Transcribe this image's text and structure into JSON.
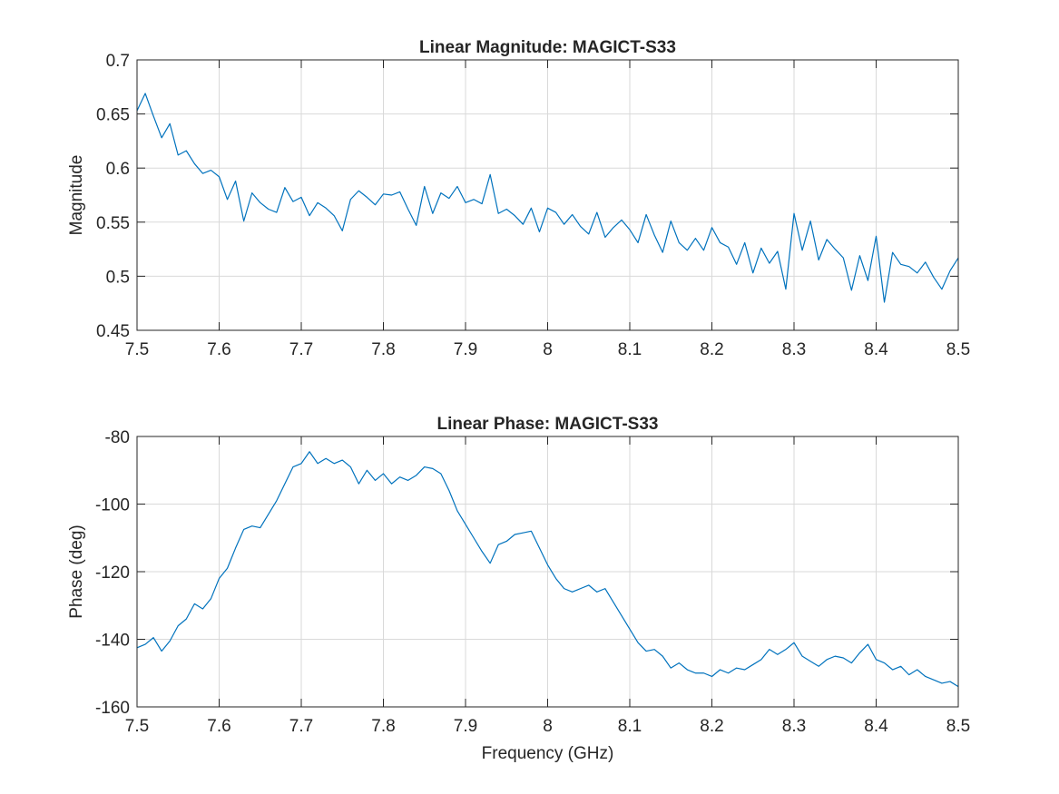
{
  "colors": {
    "series": "#0072BD",
    "axis": "#262626",
    "grid": "#d9d9d9"
  },
  "chart_data": [
    {
      "type": "line",
      "title": "Linear Magnitude: MAGICT-S33",
      "xlabel": "",
      "ylabel": "Magnitude",
      "xlim": [
        7.5,
        8.5
      ],
      "ylim": [
        0.45,
        0.7
      ],
      "xticks": [
        7.5,
        7.6,
        7.7,
        7.8,
        7.9,
        8,
        8.1,
        8.2,
        8.3,
        8.4,
        8.5
      ],
      "xtick_labels": [
        "7.5",
        "7.6",
        "7.7",
        "7.8",
        "7.9",
        "8",
        "8.1",
        "8.2",
        "8.3",
        "8.4",
        "8.5"
      ],
      "yticks": [
        0.45,
        0.5,
        0.55,
        0.6,
        0.65,
        0.7
      ],
      "ytick_labels": [
        "0.45",
        "0.5",
        "0.55",
        "0.6",
        "0.65",
        "0.7"
      ],
      "grid": true,
      "series": [
        {
          "x": [
            7.5,
            7.51,
            7.52,
            7.53,
            7.54,
            7.55,
            7.56,
            7.57,
            7.58,
            7.59,
            7.6,
            7.61,
            7.62,
            7.63,
            7.64,
            7.65,
            7.66,
            7.67,
            7.68,
            7.69,
            7.7,
            7.71,
            7.72,
            7.73,
            7.74,
            7.75,
            7.76,
            7.77,
            7.78,
            7.79,
            7.8,
            7.81,
            7.82,
            7.83,
            7.84,
            7.85,
            7.86,
            7.87,
            7.88,
            7.89,
            7.9,
            7.91,
            7.92,
            7.93,
            7.94,
            7.95,
            7.96,
            7.97,
            7.98,
            7.99,
            8.0,
            8.01,
            8.02,
            8.03,
            8.04,
            8.05,
            8.06,
            8.07,
            8.08,
            8.09,
            8.1,
            8.11,
            8.12,
            8.13,
            8.14,
            8.15,
            8.16,
            8.17,
            8.18,
            8.19,
            8.2,
            8.21,
            8.22,
            8.23,
            8.24,
            8.25,
            8.26,
            8.27,
            8.28,
            8.29,
            8.3,
            8.31,
            8.32,
            8.33,
            8.34,
            8.35,
            8.36,
            8.37,
            8.38,
            8.39,
            8.4,
            8.41,
            8.42,
            8.43,
            8.44,
            8.45,
            8.46,
            8.47,
            8.48,
            8.49,
            8.5
          ],
          "values": [
            0.653,
            0.669,
            0.648,
            0.628,
            0.641,
            0.612,
            0.616,
            0.604,
            0.595,
            0.598,
            0.592,
            0.571,
            0.588,
            0.551,
            0.577,
            0.568,
            0.562,
            0.559,
            0.582,
            0.569,
            0.573,
            0.556,
            0.568,
            0.563,
            0.556,
            0.542,
            0.571,
            0.579,
            0.573,
            0.566,
            0.576,
            0.575,
            0.578,
            0.562,
            0.547,
            0.583,
            0.558,
            0.577,
            0.572,
            0.583,
            0.568,
            0.571,
            0.567,
            0.594,
            0.558,
            0.562,
            0.556,
            0.548,
            0.563,
            0.541,
            0.563,
            0.559,
            0.548,
            0.557,
            0.546,
            0.539,
            0.559,
            0.536,
            0.545,
            0.552,
            0.543,
            0.531,
            0.557,
            0.538,
            0.522,
            0.551,
            0.531,
            0.524,
            0.535,
            0.524,
            0.545,
            0.531,
            0.527,
            0.511,
            0.531,
            0.503,
            0.526,
            0.512,
            0.523,
            0.488,
            0.558,
            0.524,
            0.551,
            0.515,
            0.534,
            0.525,
            0.517,
            0.487,
            0.519,
            0.496,
            0.537,
            0.476,
            0.522,
            0.511,
            0.509,
            0.503,
            0.513,
            0.499,
            0.488,
            0.505,
            0.517
          ]
        }
      ]
    },
    {
      "type": "line",
      "title": "Linear Phase: MAGICT-S33",
      "xlabel": "Frequency (GHz)",
      "ylabel": "Phase (deg)",
      "xlim": [
        7.5,
        8.5
      ],
      "ylim": [
        -160,
        -80
      ],
      "xticks": [
        7.5,
        7.6,
        7.7,
        7.8,
        7.9,
        8,
        8.1,
        8.2,
        8.3,
        8.4,
        8.5
      ],
      "xtick_labels": [
        "7.5",
        "7.6",
        "7.7",
        "7.8",
        "7.9",
        "8",
        "8.1",
        "8.2",
        "8.3",
        "8.4",
        "8.5"
      ],
      "yticks": [
        -160,
        -140,
        -120,
        -100,
        -80
      ],
      "ytick_labels": [
        "-160",
        "-140",
        "-120",
        "-100",
        "-80"
      ],
      "grid": true,
      "series": [
        {
          "x": [
            7.5,
            7.51,
            7.52,
            7.53,
            7.54,
            7.55,
            7.56,
            7.57,
            7.58,
            7.59,
            7.6,
            7.61,
            7.62,
            7.63,
            7.64,
            7.65,
            7.66,
            7.67,
            7.68,
            7.69,
            7.7,
            7.71,
            7.72,
            7.73,
            7.74,
            7.75,
            7.76,
            7.77,
            7.78,
            7.79,
            7.8,
            7.81,
            7.82,
            7.83,
            7.84,
            7.85,
            7.86,
            7.87,
            7.88,
            7.89,
            7.9,
            7.91,
            7.92,
            7.93,
            7.94,
            7.95,
            7.96,
            7.97,
            7.98,
            7.99,
            8.0,
            8.01,
            8.02,
            8.03,
            8.04,
            8.05,
            8.06,
            8.07,
            8.08,
            8.09,
            8.1,
            8.11,
            8.12,
            8.13,
            8.14,
            8.15,
            8.16,
            8.17,
            8.18,
            8.19,
            8.2,
            8.21,
            8.22,
            8.23,
            8.24,
            8.25,
            8.26,
            8.27,
            8.28,
            8.29,
            8.3,
            8.31,
            8.32,
            8.33,
            8.34,
            8.35,
            8.36,
            8.37,
            8.38,
            8.39,
            8.4,
            8.41,
            8.42,
            8.43,
            8.44,
            8.45,
            8.46,
            8.47,
            8.48,
            8.49,
            8.5
          ],
          "values": [
            -142.5,
            -141.5,
            -139.5,
            -143.5,
            -140.5,
            -136,
            -134,
            -129.5,
            -131,
            -128,
            -122,
            -119,
            -113,
            -107.5,
            -106.5,
            -107,
            -103,
            -99,
            -94,
            -89,
            -88,
            -84.5,
            -88,
            -86.5,
            -88,
            -87,
            -89,
            -94,
            -90,
            -93,
            -91,
            -94,
            -92,
            -93,
            -91.5,
            -89,
            -89.5,
            -91,
            -96,
            -102,
            -106,
            -110,
            -114,
            -117.5,
            -112,
            -111,
            -109,
            -108.5,
            -108,
            -113,
            -118,
            -122,
            -125,
            -126,
            -125,
            -124,
            -126,
            -125,
            -129,
            -133,
            -137,
            -141,
            -143.5,
            -143,
            -145,
            -148.5,
            -147,
            -149,
            -150,
            -150,
            -151,
            -149,
            -150,
            -148.5,
            -149,
            -147.5,
            -146,
            -143,
            -144.5,
            -143,
            -141,
            -145,
            -146.5,
            -148,
            -146,
            -145,
            -145.5,
            -147,
            -144,
            -141.5,
            -146,
            -147,
            -149,
            -148,
            -150.5,
            -149,
            -151,
            -152,
            -153,
            -152.5,
            -154
          ]
        }
      ]
    }
  ]
}
